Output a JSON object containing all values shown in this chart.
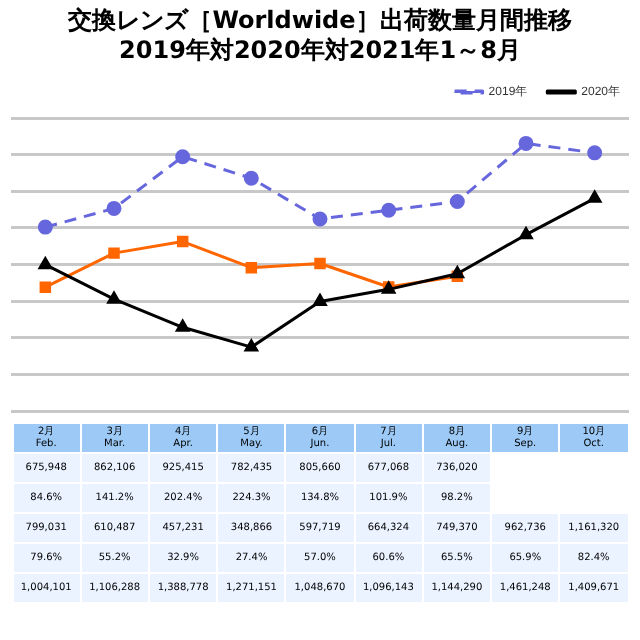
{
  "chart_data": {
    "type": "line",
    "title": "交換レンズ［Worldwide］出荷数量月間推移",
    "subtitle": "2019年対2020年対2021年1～8月",
    "categories": [
      "2月 Feb.",
      "3月 Mar.",
      "4月 Apr.",
      "5月 May.",
      "6月 Jun.",
      "7月 Jul.",
      "8月 Aug.",
      "9月 Sep.",
      "10月 Oct."
    ],
    "series": [
      {
        "name": "2019年",
        "color": "#6666dd",
        "marker": "circle",
        "line_style": "dashed",
        "values": [
          1004101,
          1106288,
          1388778,
          1271151,
          1048670,
          1096143,
          1144290,
          1461248,
          1409671
        ],
        "value_labels": [
          "1,004,101",
          "1,106,288",
          "1,388,778",
          "1,271,151",
          "1,048,670",
          "1,096,143",
          "1,144,290",
          "1,461,248",
          "1,409,671"
        ]
      },
      {
        "name": "2020年",
        "color": "#000000",
        "marker": "triangle",
        "line_style": "solid",
        "values": [
          799031,
          610487,
          457231,
          348866,
          597719,
          664324,
          749370,
          962736,
          1161320
        ],
        "value_labels": [
          "799,031",
          "610,487",
          "457,231",
          "348,866",
          "597,719",
          "664,324",
          "749,370",
          "962,736",
          "1,161,320"
        ]
      },
      {
        "color": "#ff6600",
        "marker": "square",
        "line_style": "solid",
        "values": [
          675948,
          862106,
          925415,
          782435,
          805660,
          677068,
          736020,
          null,
          null
        ],
        "value_labels": [
          "675,948",
          "862,106",
          "925,415",
          "782,435",
          "805,660",
          "677,068",
          "736,020",
          null,
          null
        ]
      }
    ],
    "grid": "y",
    "legend": "top right",
    "tick_labels": "x",
    "annotations": [
      "84.6%",
      "141.2%",
      "202.4%",
      "224.3%",
      "134.8%",
      "101.9%",
      "98.2%",
      "79.6%",
      "55.2%",
      "32.9%",
      "27.4%",
      "57.0%",
      "60.6%",
      "65.5%",
      "65.9%",
      "82.4%"
    ]
  }
}
